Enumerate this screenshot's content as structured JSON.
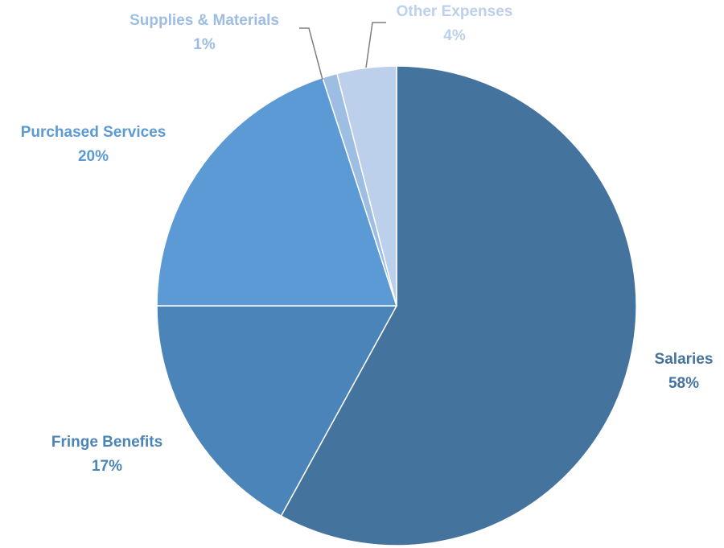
{
  "chart_data": {
    "type": "pie",
    "title": "",
    "slices": [
      {
        "name": "Salaries",
        "value": 58,
        "display": "58%",
        "color": "#44739e"
      },
      {
        "name": "Fringe Benefits",
        "value": 17,
        "display": "17%",
        "color": "#4a84b9"
      },
      {
        "name": "Purchased Services",
        "value": 20,
        "display": "20%",
        "color": "#5b9ad5"
      },
      {
        "name": "Supplies & Materials",
        "value": 1,
        "display": "1%",
        "color": "#9dbde3"
      },
      {
        "name": "Other Expenses",
        "value": 4,
        "display": "4%",
        "color": "#bdd0eb"
      }
    ],
    "label_colors": {
      "Salaries": "#44739e",
      "Fringe Benefits": "#4a84b9",
      "Purchased Services": "#5b9ad5",
      "Supplies & Materials": "#9dbde3",
      "Other Expenses": "#bdd0eb"
    },
    "leader_line_color": "#7f7f7f",
    "legend": "none",
    "data_labels": "outside"
  }
}
